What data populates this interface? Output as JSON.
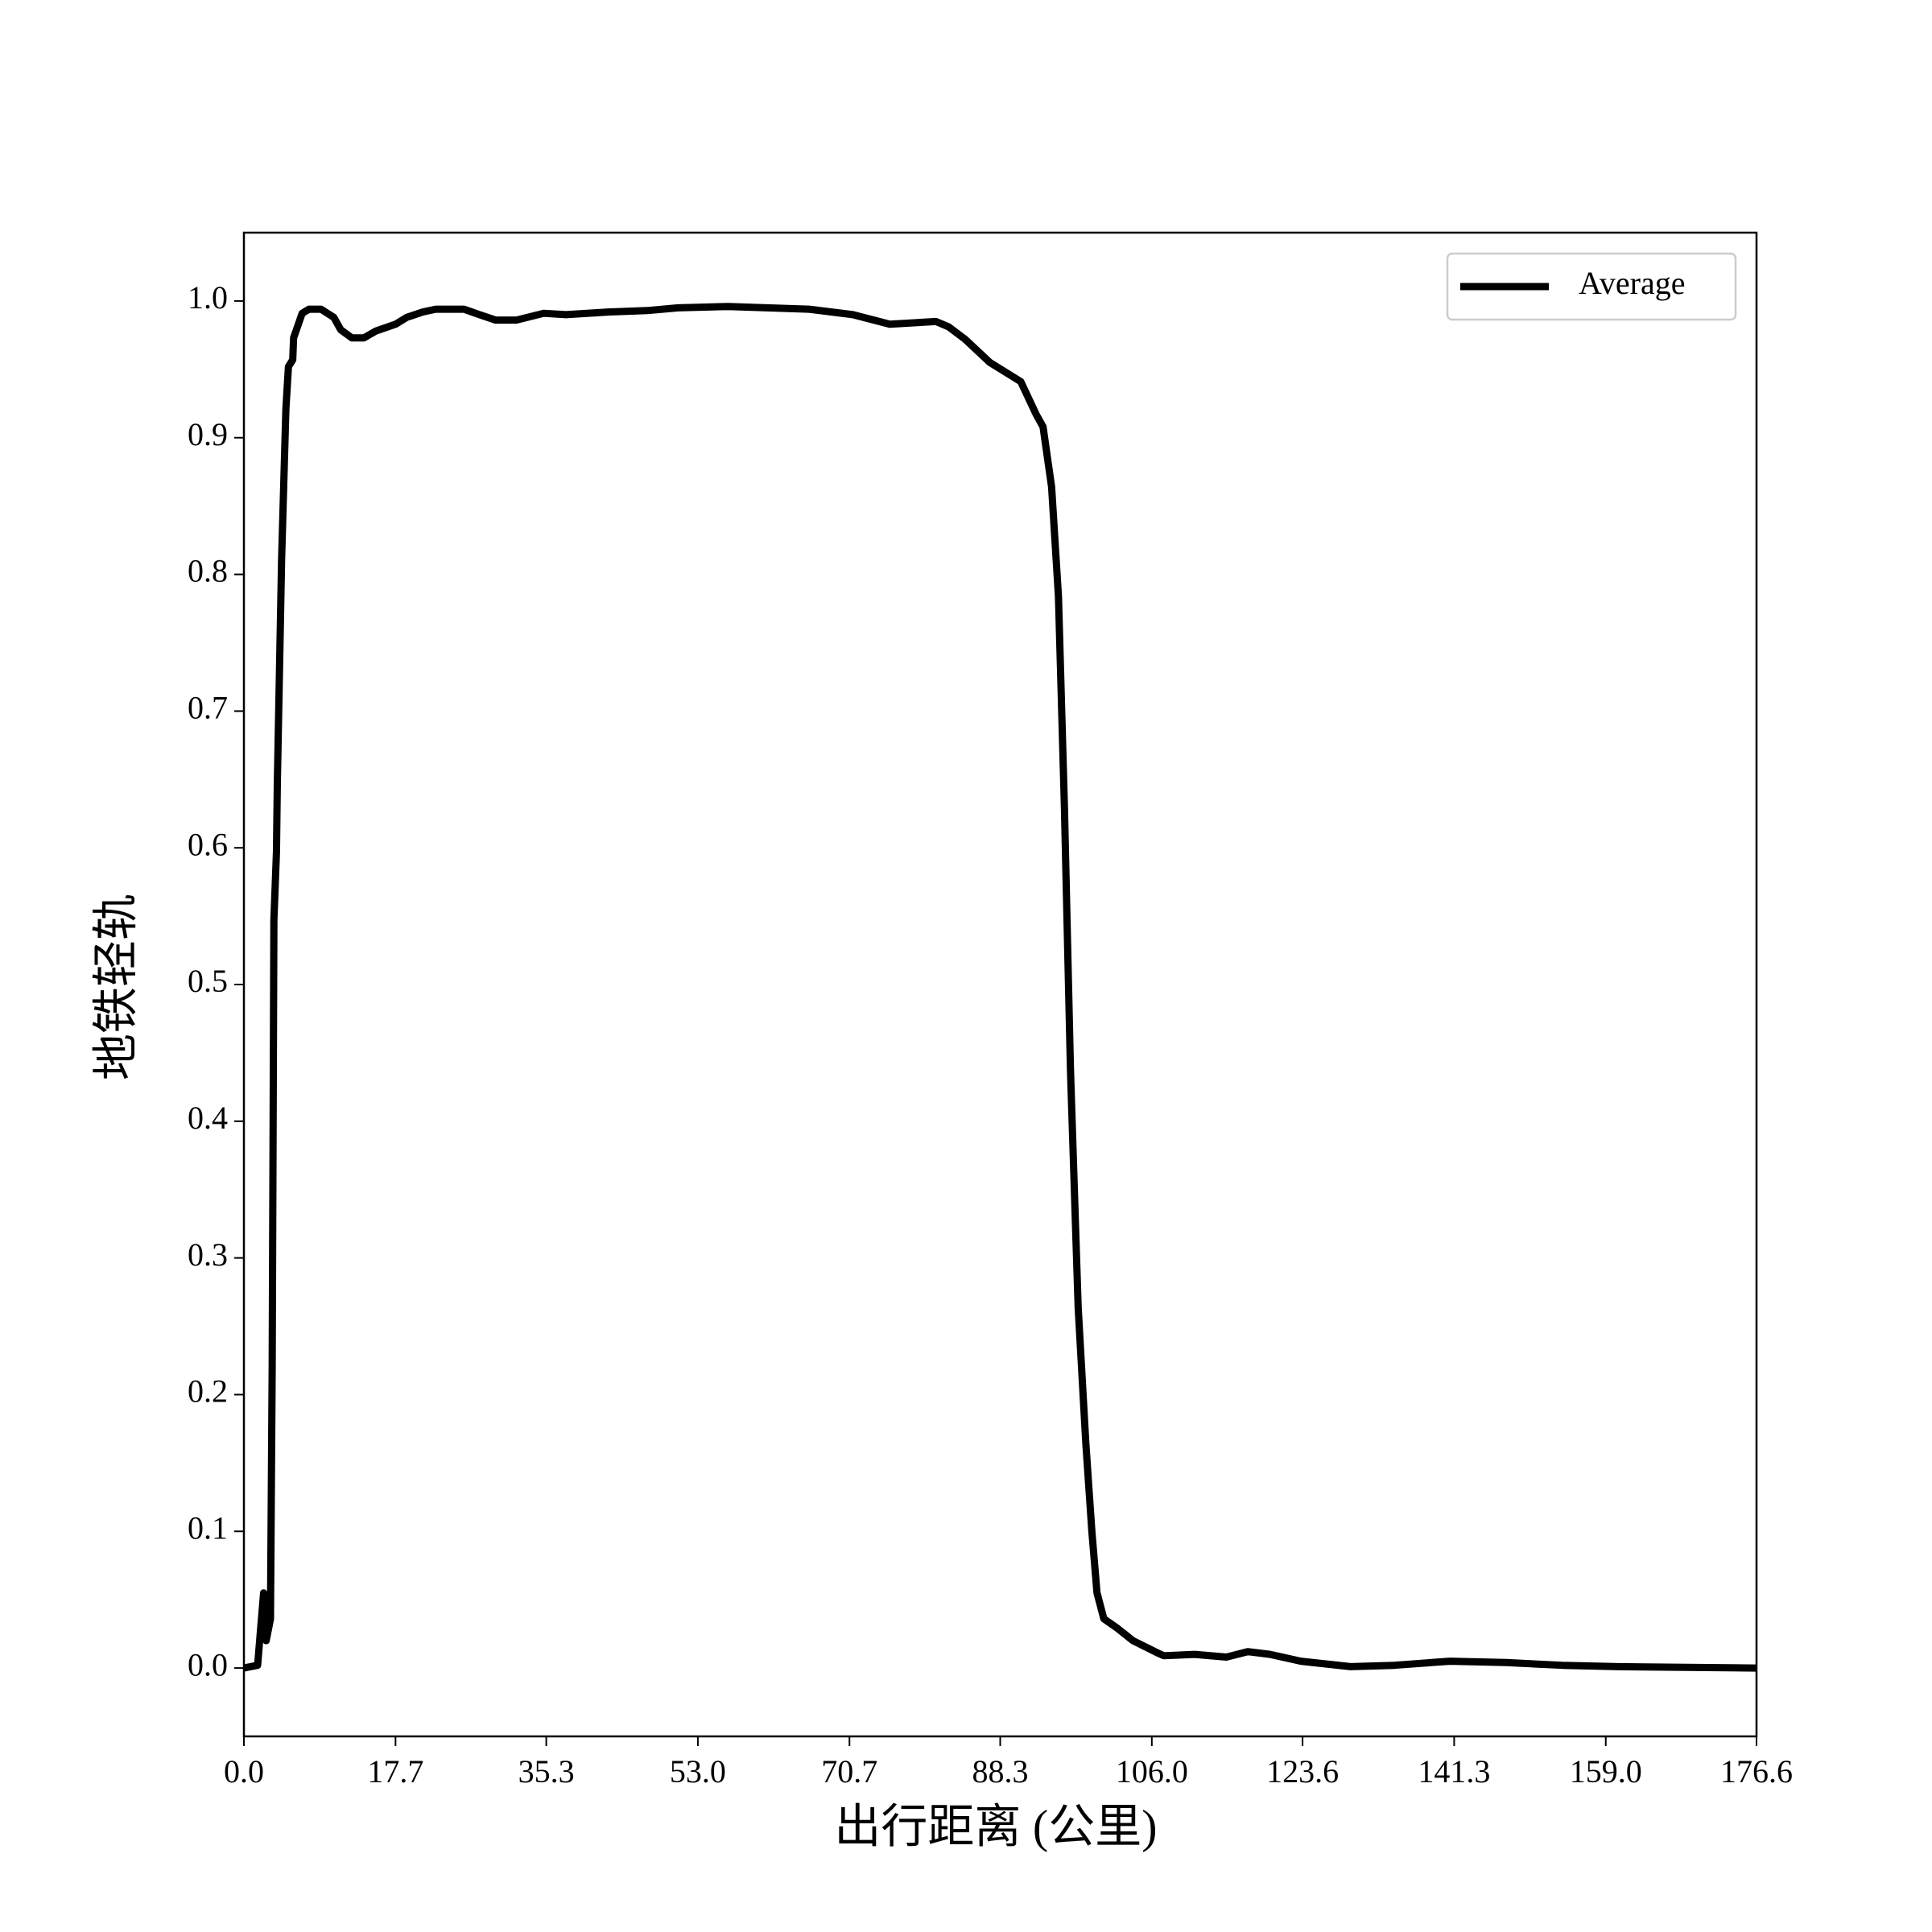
{
  "chart_data": {
    "type": "line",
    "x_label": "出行距离 (公里)",
    "y_label": "地铁轻轨",
    "xlim": [
      0,
      176.6
    ],
    "ylim": [
      -0.05,
      1.05
    ],
    "xticks": [
      {
        "value": 0,
        "label": "0.0"
      },
      17.7,
      35.3,
      {
        "value": 53,
        "label": "53.0"
      },
      70.7,
      88.3,
      {
        "value": 106,
        "label": "106.0"
      },
      123.6,
      141.3,
      {
        "value": 159,
        "label": "159.0"
      },
      176.6
    ],
    "yticks": [
      {
        "value": 0,
        "label": "0.0"
      },
      0.1,
      0.2,
      0.3,
      0.4,
      0.5,
      0.6,
      0.7,
      0.8,
      0.9,
      {
        "value": 1,
        "label": "1.0"
      }
    ],
    "legend": "upper right",
    "series": [
      {
        "name": "Average",
        "color": "#000000",
        "x": [
          0,
          1.6,
          2.3,
          2.6,
          3.1,
          3.3,
          3.5,
          3.8,
          3.9,
          4.4,
          4.9,
          5.2,
          5.7,
          5.8,
          6.8,
          7.6,
          9.0,
          10.5,
          11.3,
          12.6,
          14.0,
          15.4,
          17.7,
          19.0,
          20.9,
          22.4,
          25.7,
          27.5,
          29.4,
          31.8,
          35.0,
          37.6,
          42.7,
          47.1,
          50.7,
          56.5,
          66.0,
          71.1,
          75.4,
          80.8,
          82.3,
          84.2,
          87.1,
          90.7,
          92.5,
          93.3,
          94.3,
          95.1,
          95.8,
          96.5,
          97.4,
          98.3,
          99.0,
          99.6,
          100.4,
          102.0,
          103.8,
          106.7,
          107.4,
          111.0,
          114.7,
          117.2,
          119.8,
          123.4,
          129.2,
          134.3,
          140.8,
          147.4,
          153.9,
          160.5,
          176.6
        ],
        "values": [
          0,
          0.002,
          0.055,
          0.02,
          0.036,
          0.22,
          0.547,
          0.597,
          0.647,
          0.811,
          0.921,
          0.952,
          0.957,
          0.973,
          0.991,
          0.994,
          0.994,
          0.988,
          0.979,
          0.973,
          0.973,
          0.978,
          0.983,
          0.988,
          0.992,
          0.994,
          0.994,
          0.99,
          0.986,
          0.986,
          0.991,
          0.99,
          0.992,
          0.993,
          0.995,
          0.996,
          0.994,
          0.99,
          0.983,
          0.985,
          0.981,
          0.972,
          0.955,
          0.941,
          0.917,
          0.908,
          0.864,
          0.784,
          0.629,
          0.438,
          0.264,
          0.164,
          0.1,
          0.055,
          0.036,
          0.029,
          0.02,
          0.011,
          0.009,
          0.01,
          0.008,
          0.012,
          0.01,
          0.005,
          0.001,
          0.002,
          0.005,
          0.004,
          0.002,
          0.001,
          0
        ]
      }
    ]
  }
}
